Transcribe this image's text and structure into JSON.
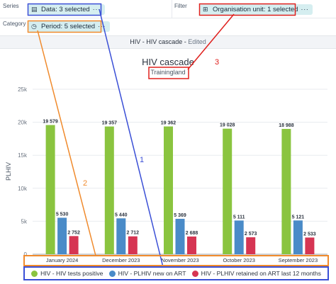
{
  "layout_panel": {
    "series_label": "Series",
    "category_label": "Category",
    "filter_label": "Filter",
    "series_chip": {
      "icon": "database-icon",
      "label": "Data: 3 selected",
      "more": "···"
    },
    "category_chip": {
      "icon": "clock-icon",
      "label": "Period: 5 selected",
      "more": "···"
    },
    "filter_chip": {
      "icon": "hierarchy-icon",
      "label": "Organisation unit: 1 selected",
      "more": "···"
    }
  },
  "visualization": {
    "name": "HIV - HIV cascade",
    "separator": " - ",
    "status": "Edited"
  },
  "chart_data": {
    "type": "bar",
    "title": "HIV cascade",
    "subtitle": "Trainingland",
    "ylabel": "PLHIV",
    "xlabel": "",
    "ylim": [
      0,
      25000
    ],
    "yticks": [
      "0",
      "5k",
      "10k",
      "15k",
      "20k",
      "25k"
    ],
    "categories": [
      "January 2024",
      "December 2023",
      "November 2023",
      "October 2023",
      "September 2023"
    ],
    "series": [
      {
        "name": "HIV - HIV tests positive",
        "color": "#8ac43f",
        "values": [
          19579,
          19357,
          19362,
          19028,
          18988
        ],
        "labels": [
          "19 579",
          "19 357",
          "19 362",
          "19 028",
          "18 988"
        ]
      },
      {
        "name": "HIV - PLHIV new on ART",
        "color": "#4a8bc8",
        "values": [
          5530,
          5440,
          5369,
          5111,
          5121
        ],
        "labels": [
          "5 530",
          "5 440",
          "5 369",
          "5 111",
          "5 121"
        ]
      },
      {
        "name": "HIV - PLHIV retained on ART last 12 months",
        "color": "#d63553",
        "values": [
          2752,
          2712,
          2688,
          2573,
          2533
        ],
        "labels": [
          "2 752",
          "2 712",
          "2 688",
          "2 573",
          "2 533"
        ]
      }
    ]
  },
  "annotations": {
    "labels": [
      "1",
      "2",
      "3"
    ],
    "colors": [
      "#3a4fd6",
      "#f08a2c",
      "#e0201d"
    ]
  }
}
